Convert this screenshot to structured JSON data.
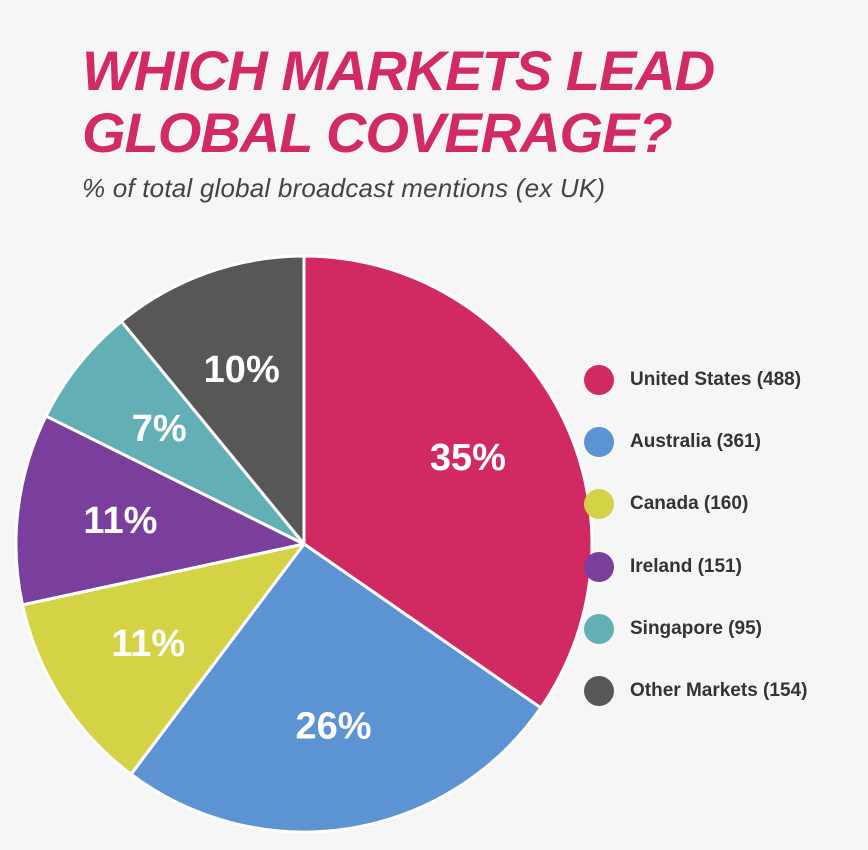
{
  "title_lines": [
    "WHICH MARKETS LEAD",
    "GLOBAL COVERAGE?"
  ],
  "subtitle": "% of total global broadcast mentions (ex UK)",
  "chart_data": {
    "type": "pie",
    "title": "WHICH MARKETS LEAD GLOBAL COVERAGE?",
    "subtitle": "% of total global broadcast mentions (ex UK)",
    "legend_position": "right",
    "slices": [
      {
        "name": "United States",
        "count": 488,
        "percent": 35,
        "pct_label": "35%",
        "legend_label": "United States (488)",
        "color": "#d12a62"
      },
      {
        "name": "Australia",
        "count": 361,
        "percent": 26,
        "pct_label": "26%",
        "legend_label": "Australia (361)",
        "color": "#5b93d3"
      },
      {
        "name": "Canada",
        "count": 160,
        "percent": 11,
        "pct_label": "11%",
        "legend_label": "Canada (160)",
        "color": "#d4d346"
      },
      {
        "name": "Ireland",
        "count": 151,
        "percent": 11,
        "pct_label": "11%",
        "legend_label": "Ireland (151)",
        "color": "#7a3f9d"
      },
      {
        "name": "Singapore",
        "count": 95,
        "percent": 7,
        "pct_label": "7%",
        "legend_label": "Singapore (95)",
        "color": "#62b0b6"
      },
      {
        "name": "Other Markets",
        "count": 154,
        "percent": 10,
        "pct_label": "10%",
        "legend_label": "Other Markets (154)",
        "color": "#575757"
      }
    ]
  }
}
